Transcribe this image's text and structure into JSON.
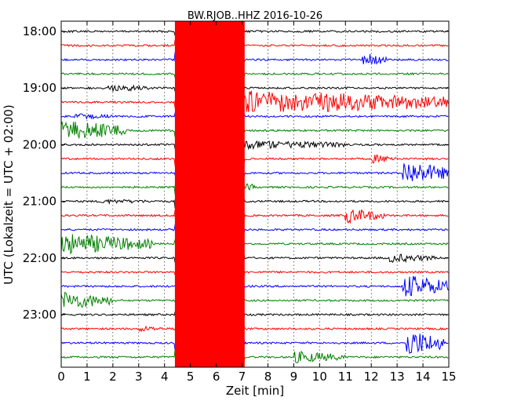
{
  "chart_data": {
    "type": "line",
    "title": "BW.RJOB..HHZ 2016-10-26",
    "xlabel": "Zeit  [min]",
    "ylabel": "UTC (Lokalzeit = UTC + 02:00)",
    "xlim": [
      0,
      15
    ],
    "x_ticks": [
      "0",
      "1",
      "2",
      "3",
      "4",
      "5",
      "6",
      "7",
      "8",
      "9",
      "10",
      "11",
      "12",
      "13",
      "14",
      "15"
    ],
    "y_ticks": [
      "18:00",
      "19:00",
      "20:00",
      "21:00",
      "22:00",
      "23:00"
    ],
    "grid": true,
    "colors": [
      "#000000",
      "#ff0000",
      "#0000ff",
      "#008000"
    ],
    "trace_interval_min": 15,
    "start_hour_utc": 18,
    "end_hour_utc": 24
  }
}
